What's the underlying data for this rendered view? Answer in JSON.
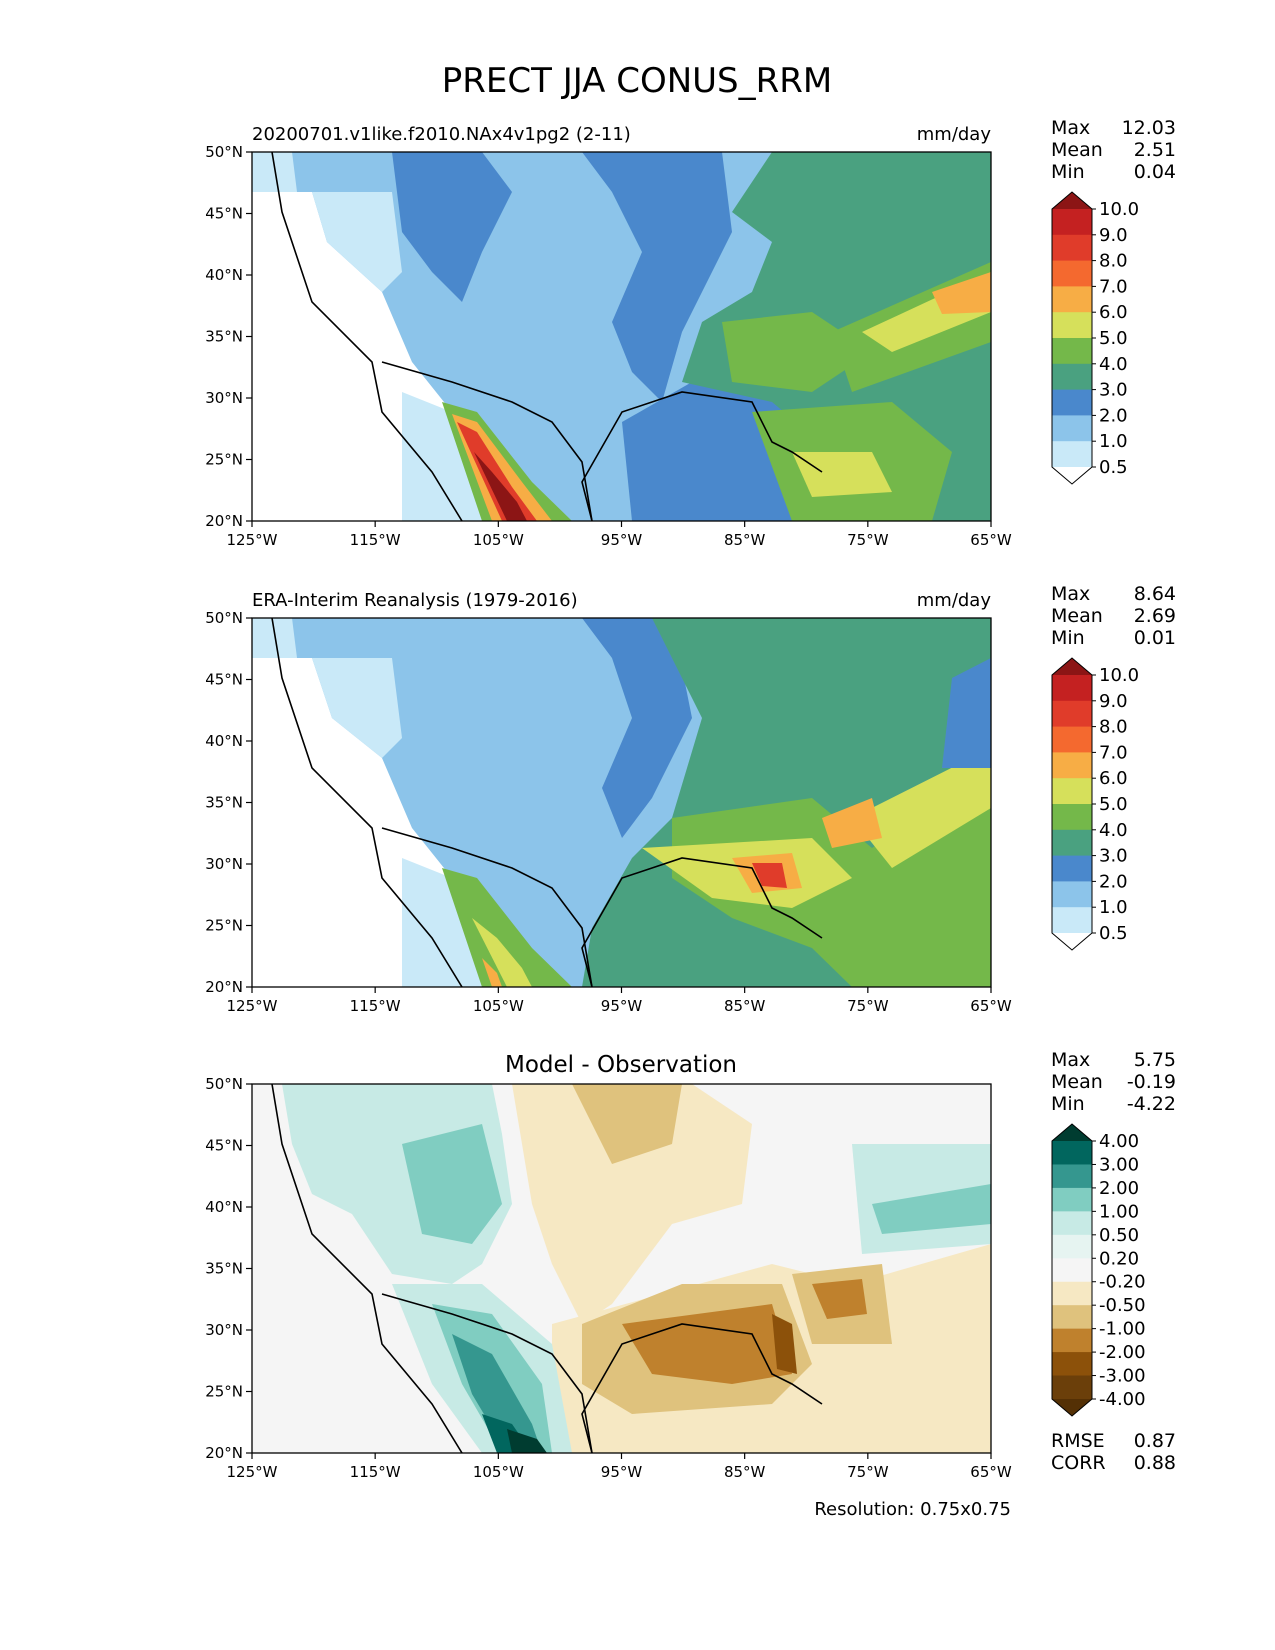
{
  "title": "PRECT JJA CONUS_RRM",
  "resolution": "Resolution: 0.75x0.75",
  "lat_ticks": [
    "50°N",
    "45°N",
    "40°N",
    "35°N",
    "30°N",
    "25°N",
    "20°N"
  ],
  "lon_ticks": [
    "125°W",
    "115°W",
    "105°W",
    "95°W",
    "85°W",
    "75°W",
    "65°W"
  ],
  "stats_labels": {
    "max": "Max",
    "mean": "Mean",
    "min": "Min"
  },
  "panels": [
    {
      "id": "model",
      "left_title": "20200701.v1like.f2010.NAx4v1pg2 (2-11)",
      "right_title": "mm/day",
      "center_title": "",
      "stats": {
        "max": "12.03",
        "mean": "2.51",
        "min": "0.04"
      },
      "colorbar_levels": [
        "10.0",
        "9.0",
        "8.0",
        "7.0",
        "6.0",
        "5.0",
        "4.0",
        "3.0",
        "2.0",
        "1.0",
        "0.5"
      ],
      "colorbar_colors": [
        "#8c1515",
        "#c42121",
        "#e03c2a",
        "#f4692f",
        "#f7ad45",
        "#d6e05b",
        "#74b84a",
        "#4aa180",
        "#4a88cc",
        "#8cc4ea",
        "#c9e9f8",
        "#ffffff"
      ]
    },
    {
      "id": "obs",
      "left_title": "ERA-Interim Reanalysis (1979-2016)",
      "right_title": "mm/day",
      "center_title": "",
      "stats": {
        "max": "8.64",
        "mean": "2.69",
        "min": "0.01"
      },
      "colorbar_levels": [
        "10.0",
        "9.0",
        "8.0",
        "7.0",
        "6.0",
        "5.0",
        "4.0",
        "3.0",
        "2.0",
        "1.0",
        "0.5"
      ],
      "colorbar_colors": [
        "#8c1515",
        "#c42121",
        "#e03c2a",
        "#f4692f",
        "#f7ad45",
        "#d6e05b",
        "#74b84a",
        "#4aa180",
        "#4a88cc",
        "#8cc4ea",
        "#c9e9f8",
        "#ffffff"
      ]
    },
    {
      "id": "diff",
      "left_title": "",
      "right_title": "",
      "center_title": "Model - Observation",
      "stats": {
        "max": "5.75",
        "mean": "-0.19",
        "min": "-4.22"
      },
      "extra": {
        "rmse_label": "RMSE",
        "rmse": "0.87",
        "corr_label": "CORR",
        "corr": "0.88"
      },
      "colorbar_levels": [
        "4.00",
        "3.00",
        "2.00",
        "1.00",
        "0.50",
        "0.20",
        "-0.20",
        "-0.50",
        "-1.00",
        "-2.00",
        "-3.00",
        "-4.00"
      ],
      "colorbar_colors": [
        "#003c30",
        "#01665e",
        "#35978f",
        "#80cdc1",
        "#c7eae5",
        "#e6f4f1",
        "#f5f5f5",
        "#f6e8c3",
        "#dfc27d",
        "#bf812d",
        "#8c510a",
        "#6b3f0a",
        "#543005"
      ]
    }
  ],
  "colors": {
    "ocean_wet": "#4aa180",
    "land_dry": "#ffffff",
    "diff_neutral": "#f5f5f5",
    "border": "#000000"
  }
}
